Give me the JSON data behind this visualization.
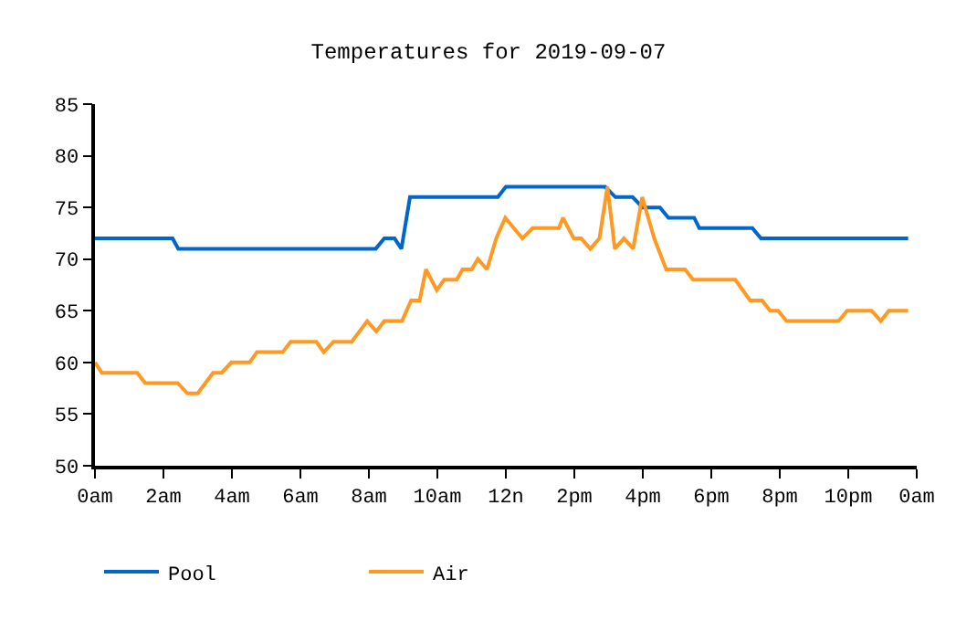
{
  "chart_data": {
    "type": "line",
    "title": "Temperatures for 2019-09-07",
    "xlim": [
      "2019-09-07T00:00",
      "2019-09-08T00:00"
    ],
    "xticks": [
      {
        "value": "2019-09-07T00:00",
        "label": "0am"
      },
      {
        "value": "2019-09-07T02:00",
        "label": "2am"
      },
      {
        "value": "2019-09-07T04:00",
        "label": "4am"
      },
      {
        "value": "2019-09-07T06:00",
        "label": "6am"
      },
      {
        "value": "2019-09-07T08:00",
        "label": "8am"
      },
      {
        "value": "2019-09-07T10:00",
        "label": "10am"
      },
      {
        "value": "2019-09-07T12:00",
        "label": "12n"
      },
      {
        "value": "2019-09-07T14:00",
        "label": "2pm"
      },
      {
        "value": "2019-09-07T16:00",
        "label": "4pm"
      },
      {
        "value": "2019-09-07T18:00",
        "label": "6pm"
      },
      {
        "value": "2019-09-07T20:00",
        "label": "8pm"
      },
      {
        "value": "2019-09-07T22:00",
        "label": "10pm"
      },
      {
        "value": "2019-09-08T00:00",
        "label": "0am"
      }
    ],
    "ylim": [
      50,
      85
    ],
    "yticks": [
      50,
      55,
      60,
      65,
      70,
      75,
      80,
      85
    ],
    "legend": "bottom",
    "marker": "none",
    "line_style": "solid",
    "series": [
      {
        "name": "Pool",
        "color": "#0066cc",
        "x": [
          "2019-09-07T00:00",
          "2019-09-07T02:16",
          "2019-09-07T02:26",
          "2019-09-07T08:12",
          "2019-09-07T08:27",
          "2019-09-07T08:45",
          "2019-09-07T08:57",
          "2019-09-07T09:12",
          "2019-09-07T11:46",
          "2019-09-07T12:00",
          "2019-09-07T14:54",
          "2019-09-07T15:12",
          "2019-09-07T15:42",
          "2019-09-07T16:00",
          "2019-09-07T16:30",
          "2019-09-07T16:45",
          "2019-09-07T17:30",
          "2019-09-07T17:39",
          "2019-09-07T19:12",
          "2019-09-07T19:27",
          "2019-09-07T23:45"
        ],
        "values": [
          72,
          72,
          71,
          71,
          72,
          72,
          71,
          76,
          76,
          77,
          77,
          76,
          76,
          75,
          75,
          74,
          74,
          73,
          73,
          72,
          72
        ]
      },
      {
        "name": "Air",
        "color": "#ff9922",
        "x": [
          "2019-09-07T00:00",
          "2019-09-07T00:12",
          "2019-09-07T01:14",
          "2019-09-07T01:28",
          "2019-09-07T02:25",
          "2019-09-07T02:42",
          "2019-09-07T03:00",
          "2019-09-07T03:27",
          "2019-09-07T03:42",
          "2019-09-07T03:59",
          "2019-09-07T04:31",
          "2019-09-07T04:44",
          "2019-09-07T05:29",
          "2019-09-07T05:43",
          "2019-09-07T06:28",
          "2019-09-07T06:41",
          "2019-09-07T06:58",
          "2019-09-07T07:30",
          "2019-09-07T07:57",
          "2019-09-07T08:13",
          "2019-09-07T08:27",
          "2019-09-07T08:58",
          "2019-09-07T09:14",
          "2019-09-07T09:29",
          "2019-09-07T09:40",
          "2019-09-07T09:59",
          "2019-09-07T10:12",
          "2019-09-07T10:34",
          "2019-09-07T10:44",
          "2019-09-07T11:00",
          "2019-09-07T11:11",
          "2019-09-07T11:27",
          "2019-09-07T11:43",
          "2019-09-07T11:59",
          "2019-09-07T12:29",
          "2019-09-07T12:47",
          "2019-09-07T13:33",
          "2019-09-07T13:40",
          "2019-09-07T13:59",
          "2019-09-07T14:12",
          "2019-09-07T14:28",
          "2019-09-07T14:44",
          "2019-09-07T14:58",
          "2019-09-07T15:11",
          "2019-09-07T15:27",
          "2019-09-07T15:43",
          "2019-09-07T15:59",
          "2019-09-07T16:20",
          "2019-09-07T16:41",
          "2019-09-07T17:14",
          "2019-09-07T17:28",
          "2019-09-07T18:42",
          "2019-09-07T19:08",
          "2019-09-07T19:29",
          "2019-09-07T19:43",
          "2019-09-07T19:57",
          "2019-09-07T20:12",
          "2019-09-07T21:43",
          "2019-09-07T21:58",
          "2019-09-07T22:41",
          "2019-09-07T22:57",
          "2019-09-07T23:11",
          "2019-09-07T23:45"
        ],
        "values": [
          60,
          59,
          59,
          58,
          58,
          57,
          57,
          59,
          59,
          60,
          60,
          61,
          61,
          62,
          62,
          61,
          62,
          62,
          64,
          63,
          64,
          64,
          66,
          66,
          69,
          67,
          68,
          68,
          69,
          69,
          70,
          69,
          72,
          74,
          72,
          73,
          73,
          74,
          72,
          72,
          71,
          72,
          77,
          71,
          72,
          71,
          76,
          72,
          69,
          69,
          68,
          68,
          66,
          66,
          65,
          65,
          64,
          64,
          65,
          65,
          64,
          65,
          65
        ]
      }
    ]
  }
}
